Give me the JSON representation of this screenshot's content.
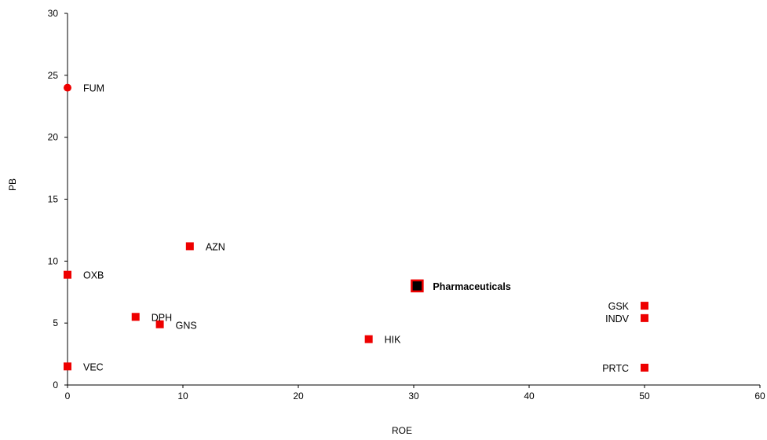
{
  "chart_data": {
    "type": "scatter",
    "title": "",
    "xlabel": "ROE",
    "ylabel": "PB",
    "xlim": [
      0,
      60
    ],
    "ylim": [
      0,
      30
    ],
    "x_ticks": [
      0,
      10,
      20,
      30,
      40,
      50,
      60
    ],
    "y_ticks": [
      0,
      5,
      10,
      15,
      20,
      25,
      30
    ],
    "grid": false,
    "legend": "none",
    "colors": {
      "marker": "#ee0000",
      "highlight_fill": "#000000",
      "highlight_border": "#ee0000",
      "axis": "#000000"
    },
    "points": [
      {
        "label": "FUM",
        "x": 0,
        "y": 24.0,
        "marker": "circle",
        "label_pos": "right"
      },
      {
        "label": "OXB",
        "x": 0,
        "y": 8.9,
        "marker": "square",
        "label_pos": "right"
      },
      {
        "label": "VEC",
        "x": 0,
        "y": 1.5,
        "marker": "square",
        "label_pos": "right"
      },
      {
        "label": "AZN",
        "x": 10.6,
        "y": 11.2,
        "marker": "square",
        "label_pos": "right"
      },
      {
        "label": "DPH",
        "x": 5.9,
        "y": 5.5,
        "marker": "square",
        "label_pos": "right"
      },
      {
        "label": "GNS",
        "x": 8.0,
        "y": 4.9,
        "marker": "square",
        "label_pos": "right-low"
      },
      {
        "label": "HIK",
        "x": 26.1,
        "y": 3.7,
        "marker": "square",
        "label_pos": "right"
      },
      {
        "label": "Pharmaceuticals",
        "x": 30.3,
        "y": 8.0,
        "marker": "square-highlight",
        "label_pos": "right",
        "bold": true
      },
      {
        "label": "GSK",
        "x": 50,
        "y": 6.4,
        "marker": "square",
        "label_pos": "left"
      },
      {
        "label": "INDV",
        "x": 50,
        "y": 5.4,
        "marker": "square",
        "label_pos": "left"
      },
      {
        "label": "PRTC",
        "x": 50,
        "y": 1.4,
        "marker": "square",
        "label_pos": "left"
      }
    ]
  }
}
